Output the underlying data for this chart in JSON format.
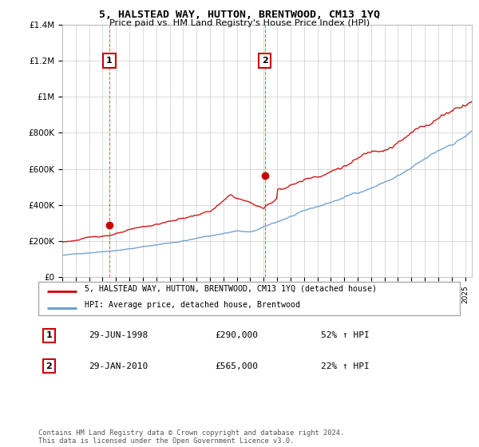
{
  "title": "5, HALSTEAD WAY, HUTTON, BRENTWOOD, CM13 1YQ",
  "subtitle": "Price paid vs. HM Land Registry's House Price Index (HPI)",
  "ylim": [
    0,
    1400000
  ],
  "yticks": [
    0,
    200000,
    400000,
    600000,
    800000,
    1000000,
    1200000,
    1400000
  ],
  "x_start_year": 1995,
  "x_end_year": 2025,
  "hpi_color": "#6699cc",
  "price_color": "#cc0000",
  "dashed_line_color": "#cc0000",
  "marker1_year": 1998.5,
  "marker1_price": 290000,
  "marker1_label": "1",
  "marker1_date": "29-JUN-1998",
  "marker1_amount": "£290,000",
  "marker1_hpi": "52% ↑ HPI",
  "marker2_year": 2010.08,
  "marker2_price": 565000,
  "marker2_label": "2",
  "marker2_date": "29-JAN-2010",
  "marker2_amount": "£565,000",
  "marker2_hpi": "22% ↑ HPI",
  "legend_entry1": "5, HALSTEAD WAY, HUTTON, BRENTWOOD, CM13 1YQ (detached house)",
  "legend_entry2": "HPI: Average price, detached house, Brentwood",
  "footer": "Contains HM Land Registry data © Crown copyright and database right 2024.\nThis data is licensed under the Open Government Licence v3.0.",
  "background_color": "#ffffff",
  "grid_color": "#cccccc"
}
